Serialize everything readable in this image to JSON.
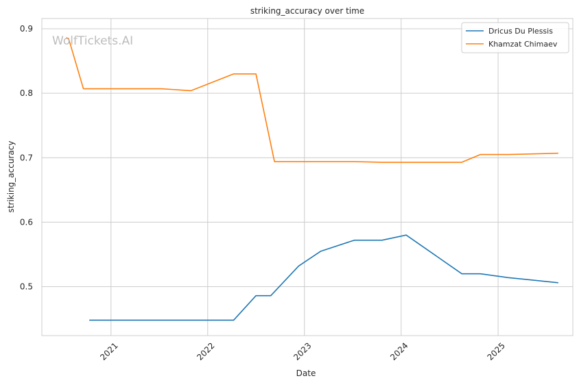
{
  "watermark": "WolfTickets.AI",
  "chart_data": {
    "type": "line",
    "title": "striking_accuracy over time",
    "xlabel": "Date",
    "ylabel": "striking_accuracy",
    "xlim": [
      "2020-04-15",
      "2025-10-10"
    ],
    "ylim": [
      0.424,
      0.916
    ],
    "x_ticks": [
      {
        "date": "2021-01-01",
        "label": "2021"
      },
      {
        "date": "2022-01-01",
        "label": "2022"
      },
      {
        "date": "2023-01-01",
        "label": "2023"
      },
      {
        "date": "2024-01-01",
        "label": "2024"
      },
      {
        "date": "2025-01-01",
        "label": "2025"
      }
    ],
    "y_ticks": [
      {
        "value": 0.5,
        "label": "0.5"
      },
      {
        "value": 0.6,
        "label": "0.6"
      },
      {
        "value": 0.7,
        "label": "0.7"
      },
      {
        "value": 0.8,
        "label": "0.8"
      },
      {
        "value": 0.9,
        "label": "0.9"
      }
    ],
    "grid": true,
    "legend_position": "top-right",
    "series": [
      {
        "name": "Dricus Du Plessis",
        "color": "#1f77b4",
        "points": [
          {
            "x": "2020-10-11",
            "y": 0.448
          },
          {
            "x": "2022-04-09",
            "y": 0.448
          },
          {
            "x": "2022-07-02",
            "y": 0.486
          },
          {
            "x": "2022-08-27",
            "y": 0.486
          },
          {
            "x": "2022-12-10",
            "y": 0.532
          },
          {
            "x": "2023-03-04",
            "y": 0.555
          },
          {
            "x": "2023-07-08",
            "y": 0.572
          },
          {
            "x": "2023-10-21",
            "y": 0.572
          },
          {
            "x": "2024-01-20",
            "y": 0.58
          },
          {
            "x": "2024-08-17",
            "y": 0.52
          },
          {
            "x": "2024-10-26",
            "y": 0.52
          },
          {
            "x": "2025-02-08",
            "y": 0.514
          },
          {
            "x": "2025-08-16",
            "y": 0.506
          }
        ]
      },
      {
        "name": "Khamzat Chimaev",
        "color": "#ff7f0e",
        "points": [
          {
            "x": "2020-07-15",
            "y": 0.886
          },
          {
            "x": "2020-07-25",
            "y": 0.885
          },
          {
            "x": "2020-09-19",
            "y": 0.807
          },
          {
            "x": "2021-07-10",
            "y": 0.807
          },
          {
            "x": "2021-10-30",
            "y": 0.804
          },
          {
            "x": "2022-04-09",
            "y": 0.83
          },
          {
            "x": "2022-07-02",
            "y": 0.83
          },
          {
            "x": "2022-09-10",
            "y": 0.694
          },
          {
            "x": "2023-07-08",
            "y": 0.694
          },
          {
            "x": "2023-10-21",
            "y": 0.693
          },
          {
            "x": "2024-08-17",
            "y": 0.693
          },
          {
            "x": "2024-10-26",
            "y": 0.705
          },
          {
            "x": "2025-02-08",
            "y": 0.705
          },
          {
            "x": "2025-08-16",
            "y": 0.707
          }
        ]
      }
    ]
  }
}
